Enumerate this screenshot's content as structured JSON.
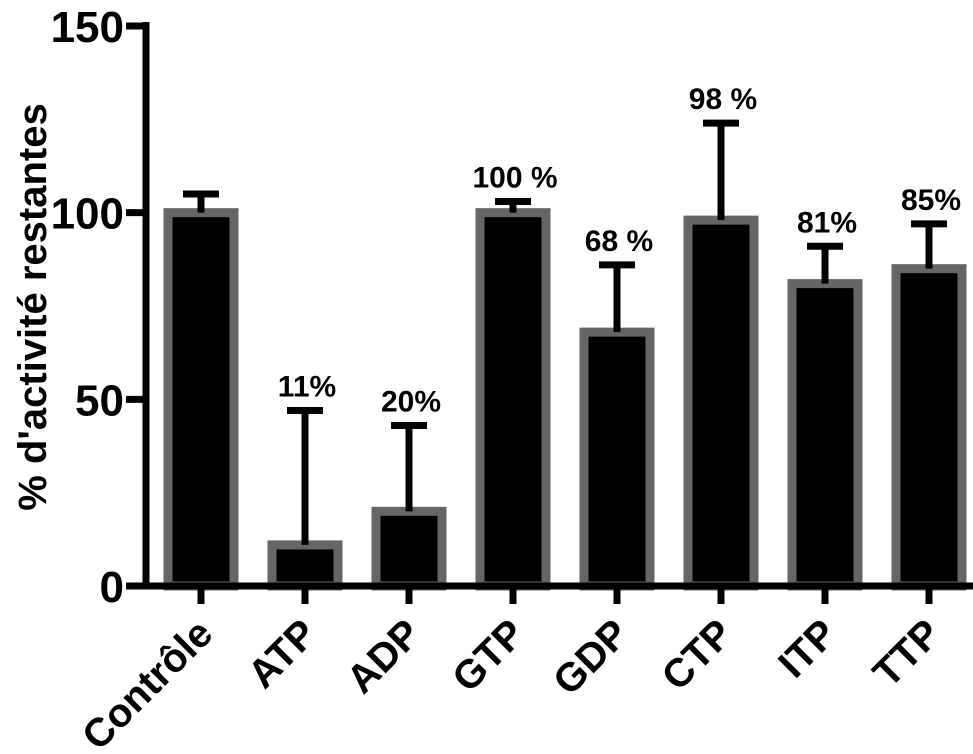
{
  "chart_data": {
    "type": "bar",
    "ylabel": "% d'activité restantes",
    "ylim": [
      0,
      150
    ],
    "yticks": [
      0,
      50,
      100,
      150
    ],
    "categories": [
      "Contrôle",
      "ATP",
      "ADP",
      "GTP",
      "GDP",
      "CTP",
      "ITP",
      "TTP"
    ],
    "values": [
      100,
      11,
      20,
      100,
      68,
      98,
      81,
      85
    ],
    "error_upper": [
      105,
      47,
      43,
      103,
      86,
      124,
      91,
      97
    ],
    "data_labels": [
      "",
      "11%",
      "20%",
      "100 %",
      "68 %",
      "98 %",
      "81%",
      "85%"
    ],
    "colors": {
      "bar_fill": "#000000",
      "bar_edge": "#666666",
      "axis": "#000000"
    }
  }
}
